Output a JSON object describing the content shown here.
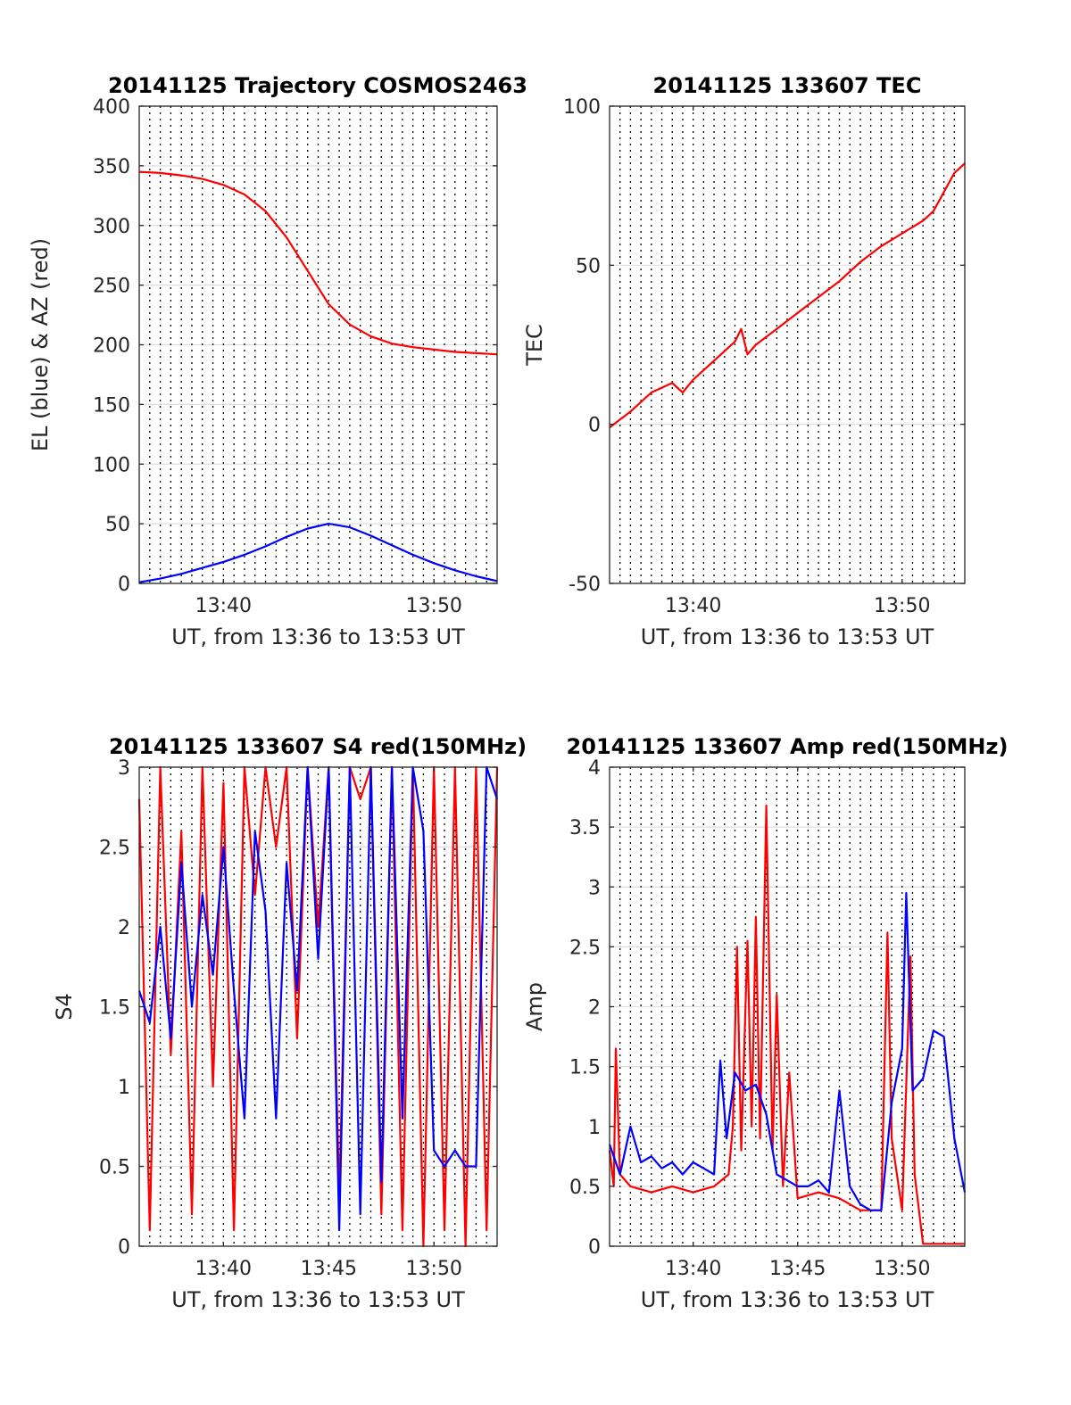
{
  "chart_data": [
    {
      "type": "line",
      "title": "20141125 Trajectory COSMOS2463",
      "xlabel": "UT, from 13:36 to 13:53 UT",
      "ylabel": "EL (blue) & AZ (red)",
      "xlim": [
        "13:36",
        "13:53"
      ],
      "x_ticks": [
        "13:40",
        "13:50"
      ],
      "ylim": [
        0,
        400
      ],
      "y_ticks": [
        "0",
        "50",
        "100",
        "150",
        "200",
        "250",
        "300",
        "350",
        "400"
      ],
      "grid": "on",
      "series": [
        {
          "color": "#ff0000",
          "x": [
            "13:36",
            "13:37",
            "13:38",
            "13:39",
            "13:40",
            "13:41",
            "13:42",
            "13:43",
            "13:44",
            "13:45",
            "13:46",
            "13:47",
            "13:48",
            "13:49",
            "13:50",
            "13:51",
            "13:52",
            "13:53"
          ],
          "values": [
            345,
            344,
            342,
            339,
            334,
            326,
            312,
            290,
            262,
            234,
            217,
            207,
            201,
            198,
            196,
            194,
            193,
            192
          ]
        },
        {
          "color": "#0000ff",
          "x": [
            "13:36",
            "13:37",
            "13:38",
            "13:39",
            "13:40",
            "13:41",
            "13:42",
            "13:43",
            "13:44",
            "13:45",
            "13:46",
            "13:47",
            "13:48",
            "13:49",
            "13:50",
            "13:51",
            "13:52",
            "13:53"
          ],
          "values": [
            1,
            4,
            8,
            13,
            18,
            24,
            31,
            39,
            46,
            50,
            47,
            40,
            32,
            24,
            17,
            11,
            6,
            2
          ]
        }
      ]
    },
    {
      "type": "line",
      "title": "20141125 133607 TEC",
      "xlabel": "UT, from 13:36 to 13:53 UT",
      "ylabel": "TEC",
      "xlim": [
        "13:36",
        "13:53"
      ],
      "x_ticks": [
        "13:40",
        "13:50"
      ],
      "ylim": [
        -50,
        100
      ],
      "y_ticks": [
        "-50",
        "0",
        "50",
        "100"
      ],
      "grid": "on",
      "series": [
        {
          "color": "#ff0000",
          "x": [
            "13:36",
            "13:37",
            "13:38",
            "13:39",
            "13:39.5",
            "13:40",
            "13:41",
            "13:42",
            "13:42.3",
            "13:42.6",
            "13:43",
            "13:44",
            "13:45",
            "13:46",
            "13:47",
            "13:48",
            "13:49",
            "13:50",
            "13:51",
            "13:51.5",
            "13:52",
            "13:52.5",
            "13:53"
          ],
          "values": [
            -1,
            4,
            10,
            13,
            10,
            14,
            20,
            26,
            30,
            22,
            25,
            30,
            35,
            40,
            45,
            51,
            56,
            60,
            64,
            67,
            73,
            79,
            82
          ]
        }
      ]
    },
    {
      "type": "line",
      "title": "20141125 133607 S4 red(150MHz)",
      "xlabel": "UT, from 13:36 to 13:53 UT",
      "ylabel": "S4",
      "xlim": [
        "13:36",
        "13:53"
      ],
      "x_ticks": [
        "13:40",
        "13:45",
        "13:50"
      ],
      "ylim": [
        0,
        3
      ],
      "y_ticks": [
        "0",
        "0.5",
        "1",
        "1.5",
        "2",
        "2.5",
        "3"
      ],
      "grid": "on",
      "series": [
        {
          "color": "#ff0000",
          "x": [
            "13:36",
            "13:36.5",
            "13:37",
            "13:37.5",
            "13:38",
            "13:38.5",
            "13:39",
            "13:39.5",
            "13:40",
            "13:40.5",
            "13:41",
            "13:41.5",
            "13:42",
            "13:42.5",
            "13:43",
            "13:43.5",
            "13:44",
            "13:44.5",
            "13:45",
            "13:45.5",
            "13:46",
            "13:46.5",
            "13:47",
            "13:47.5",
            "13:48",
            "13:48.5",
            "13:49",
            "13:49.5",
            "13:50",
            "13:50.5",
            "13:51",
            "13:51.5",
            "13:52",
            "13:52.5",
            "13:53"
          ],
          "values": [
            2.8,
            0.1,
            3.0,
            1.2,
            2.6,
            0.2,
            3.0,
            1.0,
            2.9,
            0.1,
            3.0,
            2.2,
            3.0,
            2.5,
            3.0,
            1.3,
            3.0,
            2.0,
            3.0,
            0.3,
            3.0,
            2.8,
            3.0,
            0.2,
            3.0,
            0.1,
            3.0,
            0.0,
            3.0,
            0.1,
            3.0,
            0.0,
            3.0,
            0.1,
            3.0
          ]
        },
        {
          "color": "#0000ff",
          "x": [
            "13:36",
            "13:36.5",
            "13:37",
            "13:37.5",
            "13:38",
            "13:38.5",
            "13:39",
            "13:39.5",
            "13:40",
            "13:40.5",
            "13:41",
            "13:41.5",
            "13:42",
            "13:42.5",
            "13:43",
            "13:43.5",
            "13:44",
            "13:44.5",
            "13:45",
            "13:45.5",
            "13:46",
            "13:46.5",
            "13:47",
            "13:47.5",
            "13:48",
            "13:48.5",
            "13:49",
            "13:49.5",
            "13:50",
            "13:50.5",
            "13:51",
            "13:51.5",
            "13:52",
            "13:52.5",
            "13:53"
          ],
          "values": [
            1.6,
            1.4,
            2.0,
            1.3,
            2.4,
            1.5,
            2.2,
            1.7,
            2.5,
            1.6,
            0.8,
            2.6,
            2.1,
            0.8,
            2.4,
            1.6,
            3.0,
            1.8,
            3.0,
            0.1,
            3.0,
            0.2,
            3.0,
            0.4,
            3.0,
            0.8,
            3.0,
            2.6,
            0.6,
            0.5,
            0.6,
            0.5,
            0.5,
            3.0,
            2.8
          ]
        }
      ]
    },
    {
      "type": "line",
      "title": "20141125 133607 Amp red(150MHz)",
      "xlabel": "UT, from 13:36 to 13:53 UT",
      "ylabel": "Amp",
      "xlim": [
        "13:36",
        "13:53"
      ],
      "x_ticks": [
        "13:40",
        "13:45",
        "13:50"
      ],
      "ylim": [
        0,
        4
      ],
      "y_ticks": [
        "0",
        "0.5",
        "1",
        "1.5",
        "2",
        "2.5",
        "3",
        "3.5",
        "4"
      ],
      "grid": "on",
      "series": [
        {
          "color": "#ff0000",
          "x": [
            "13:36",
            "13:36.2",
            "13:36.3",
            "13:36.5",
            "13:37",
            "13:38",
            "13:39",
            "13:40",
            "13:41",
            "13:41.7",
            "13:41.9",
            "13:42.1",
            "13:42.3",
            "13:42.6",
            "13:42.8",
            "13:43",
            "13:43.2",
            "13:43.5",
            "13:43.8",
            "13:44",
            "13:44.3",
            "13:44.6",
            "13:45",
            "13:46",
            "13:47",
            "13:48",
            "13:49",
            "13:49.3",
            "13:49.5",
            "13:50",
            "13:50.4",
            "13:50.6",
            "13:51",
            "13:52",
            "13:53"
          ],
          "values": [
            0.8,
            0.5,
            1.65,
            0.6,
            0.5,
            0.45,
            0.5,
            0.45,
            0.5,
            0.6,
            1.0,
            2.5,
            0.8,
            2.55,
            1.0,
            2.75,
            0.9,
            3.68,
            0.8,
            2.1,
            0.5,
            1.45,
            0.4,
            0.45,
            0.4,
            0.3,
            0.3,
            2.62,
            0.9,
            0.3,
            2.42,
            0.6,
            0.02,
            0.02,
            0.02
          ]
        },
        {
          "color": "#0000ff",
          "x": [
            "13:36",
            "13:36.5",
            "13:37",
            "13:37.5",
            "13:38",
            "13:38.5",
            "13:39",
            "13:39.5",
            "13:40",
            "13:40.5",
            "13:41",
            "13:41.3",
            "13:41.6",
            "13:42",
            "13:42.5",
            "13:43",
            "13:43.5",
            "13:44",
            "13:44.5",
            "13:45",
            "13:45.5",
            "13:46",
            "13:46.5",
            "13:47",
            "13:47.5",
            "13:48",
            "13:48.5",
            "13:49",
            "13:49.5",
            "13:50",
            "13:50.2",
            "13:50.5",
            "13:51",
            "13:51.5",
            "13:52",
            "13:52.5",
            "13:53"
          ],
          "values": [
            0.85,
            0.6,
            1.0,
            0.7,
            0.75,
            0.65,
            0.7,
            0.6,
            0.7,
            0.65,
            0.6,
            1.55,
            0.9,
            1.45,
            1.3,
            1.35,
            1.1,
            0.6,
            0.55,
            0.5,
            0.5,
            0.55,
            0.45,
            1.3,
            0.5,
            0.35,
            0.3,
            0.3,
            1.2,
            1.65,
            2.95,
            1.3,
            1.4,
            1.8,
            1.75,
            0.9,
            0.45
          ]
        }
      ]
    }
  ]
}
